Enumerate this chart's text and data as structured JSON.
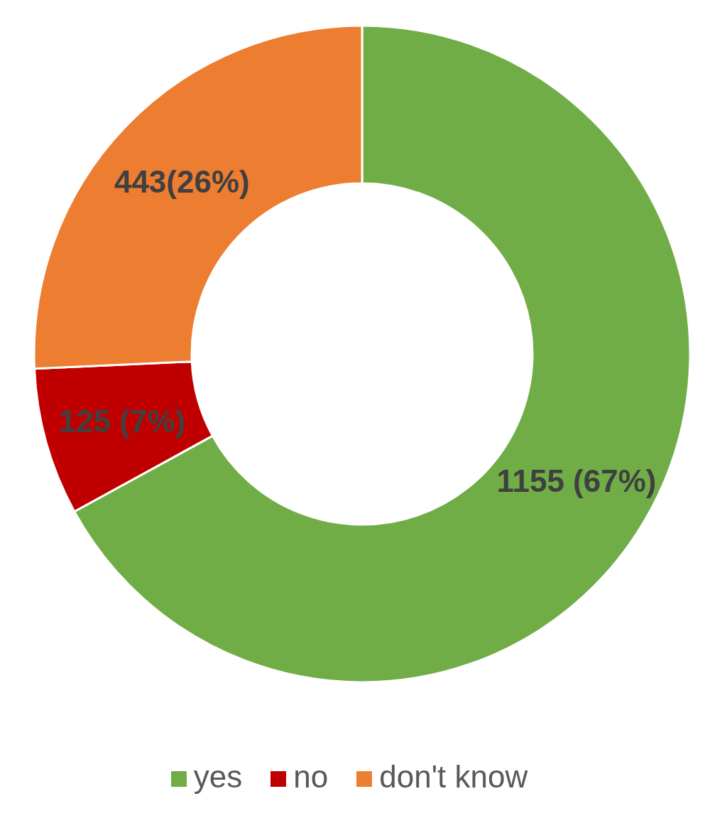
{
  "chart_data": {
    "type": "donut",
    "categories": [
      "yes",
      "no",
      "don't know"
    ],
    "values": [
      1155,
      125,
      443
    ],
    "colors": [
      "#70ad47",
      "#c00000",
      "#ed7d31"
    ],
    "value_labels": [
      "1155 (67%)",
      "125 (7%)",
      "443(26%)"
    ],
    "legend": "bottom"
  }
}
